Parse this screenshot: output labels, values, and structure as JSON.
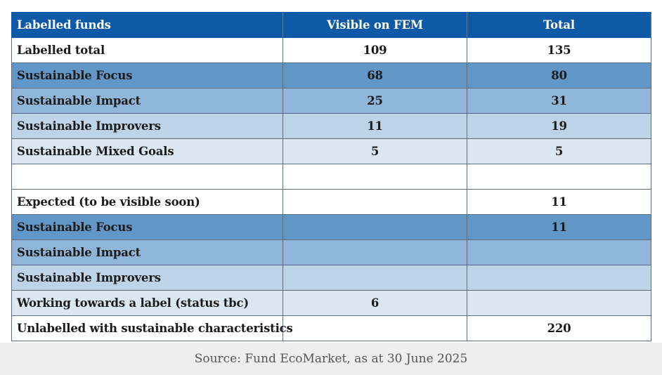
{
  "table": {
    "headers": [
      "Labelled funds",
      "Visible on FEM",
      "Total"
    ],
    "rows": [
      {
        "label": "Labelled total",
        "visible": "109",
        "total": "135"
      },
      {
        "label": "Sustainable Focus",
        "visible": "68",
        "total": "80"
      },
      {
        "label": "Sustainable Impact",
        "visible": "25",
        "total": "31"
      },
      {
        "label": "Sustainable Improvers",
        "visible": "11",
        "total": "19"
      },
      {
        "label": "Sustainable Mixed Goals",
        "visible": "5",
        "total": "5"
      },
      {
        "label": "",
        "visible": "",
        "total": ""
      },
      {
        "label": "Expected (to be visible soon)",
        "visible": "",
        "total": "11"
      },
      {
        "label": "Sustainable Focus",
        "visible": "",
        "total": "11"
      },
      {
        "label": "Sustainable Impact",
        "visible": "",
        "total": ""
      },
      {
        "label": "Sustainable Improvers",
        "visible": "",
        "total": ""
      },
      {
        "label": "Working towards a label (status tbc)",
        "visible": "6",
        "total": ""
      },
      {
        "label": "Unlabelled with sustainable characteristics",
        "visible": "",
        "total": "220"
      }
    ],
    "row_colors": {
      "header": "#0f5aa7",
      "focus": "#6197c6",
      "impact": "#8fb5d8",
      "improvers": "#bcd3e8",
      "mixed_goals": "#dbe7f3",
      "plain": "#ffffff"
    }
  },
  "footer": {
    "source": "Source: Fund EcoMarket, as at 30 June 2025"
  }
}
